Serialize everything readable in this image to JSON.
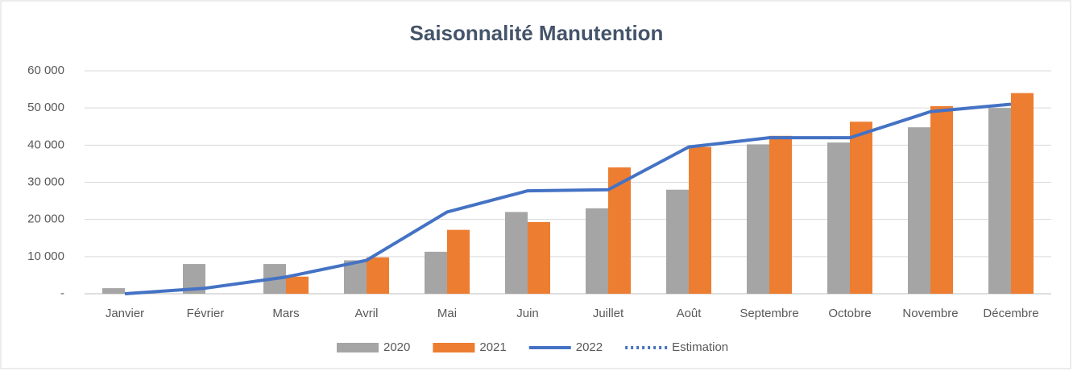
{
  "chart_data": {
    "type": "bar-line",
    "title": "Saisonnalité Manutention",
    "categories": [
      "Janvier",
      "Février",
      "Mars",
      "Avril",
      "Mai",
      "Juin",
      "Juillet",
      "Août",
      "Septembre",
      "Octobre",
      "Novembre",
      "Décembre"
    ],
    "series": [
      {
        "name": "2020",
        "type": "bar",
        "color": "#a5a5a5",
        "values": [
          1500,
          8000,
          8000,
          9000,
          11300,
          22000,
          23000,
          28000,
          40200,
          40700,
          44800,
          50000
        ]
      },
      {
        "name": "2021",
        "type": "bar",
        "color": "#ed7d31",
        "values": [
          null,
          null,
          4600,
          9800,
          17200,
          19300,
          34000,
          39500,
          42500,
          46300,
          50500,
          54000
        ]
      },
      {
        "name": "2022",
        "type": "line",
        "color": "#4472c4",
        "values": [
          0,
          1500,
          4500,
          9000,
          22000,
          27700,
          28000,
          39500,
          42000,
          42000,
          49000,
          51000
        ]
      },
      {
        "name": "Estimation",
        "type": "line",
        "dotted": true,
        "color": "#4472c4",
        "values": [
          null,
          null,
          null,
          null,
          null,
          null,
          null,
          null,
          null,
          null,
          null,
          null
        ]
      }
    ],
    "ylim": [
      0,
      60000
    ],
    "yticks": [
      {
        "value": 0,
        "label": "-"
      },
      {
        "value": 10000,
        "label": "10 000"
      },
      {
        "value": 20000,
        "label": "20 000"
      },
      {
        "value": 30000,
        "label": "30 000"
      },
      {
        "value": 40000,
        "label": "40 000"
      },
      {
        "value": 50000,
        "label": "50 000"
      },
      {
        "value": 60000,
        "label": "60 000"
      }
    ],
    "grid": true,
    "legend": "bottom"
  }
}
